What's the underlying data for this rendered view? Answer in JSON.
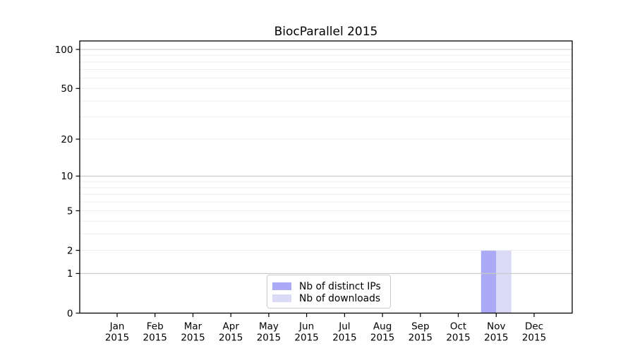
{
  "chart_data": {
    "type": "bar",
    "title": "BiocParallel 2015",
    "categories": [
      "Jan",
      "Feb",
      "Mar",
      "Apr",
      "May",
      "Jun",
      "Jul",
      "Aug",
      "Sep",
      "Oct",
      "Nov",
      "Dec"
    ],
    "category_year": "2015",
    "series": [
      {
        "name": "Nb of distinct IPs",
        "color": "#aaaaf6",
        "values": [
          0,
          0,
          0,
          0,
          0,
          0,
          0,
          0,
          0,
          0,
          2,
          0
        ]
      },
      {
        "name": "Nb of downloads",
        "color": "#dbdbf7",
        "values": [
          0,
          0,
          0,
          0,
          0,
          0,
          0,
          0,
          0,
          0,
          2,
          0
        ]
      }
    ],
    "xlabel": "",
    "ylabel": "",
    "y_scale": "log1p",
    "y_ticks": [
      0,
      1,
      2,
      5,
      10,
      20,
      50,
      100
    ],
    "grid_major": [
      1,
      10,
      100
    ],
    "grid_minor": [
      2,
      3,
      4,
      5,
      6,
      7,
      8,
      9,
      20,
      30,
      40,
      50,
      60,
      70,
      80,
      90
    ],
    "ylim": [
      0,
      116
    ],
    "grid": "on",
    "legend_position": "lower-center-inside",
    "colors": {
      "background": "#ffffff",
      "axis": "#000000",
      "grid_major": "#c9c9c9",
      "grid_minor": "#ededed",
      "legend_border": "#cbcbcb",
      "text": "#000000"
    }
  }
}
